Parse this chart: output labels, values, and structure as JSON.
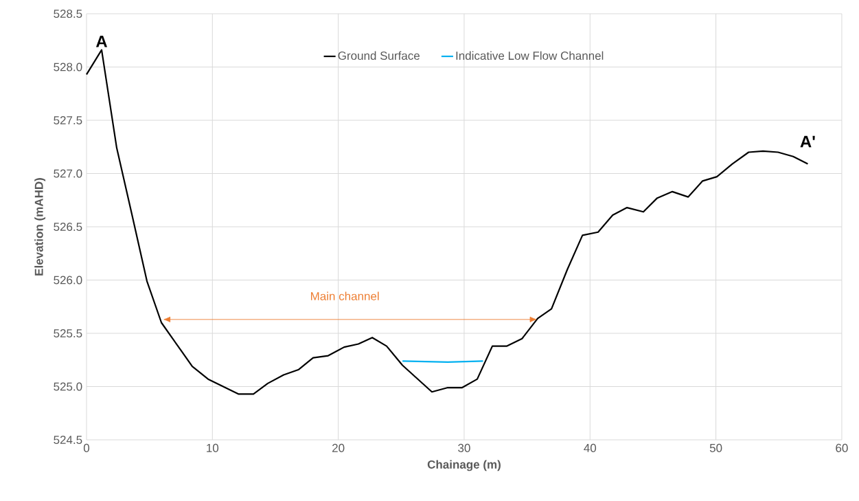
{
  "chart_data": {
    "type": "line",
    "xlabel": "Chainage (m)",
    "ylabel": "Elevation (mAHD)",
    "series": [
      {
        "name": "Ground Surface",
        "color": "#000000",
        "x": [
          0,
          1.2,
          2.4,
          3.6,
          4.8,
          5.95,
          8.4,
          9.66,
          12.06,
          13.26,
          14.4,
          15.66,
          16.86,
          18.0,
          19.2,
          20.46,
          21.6,
          22.7,
          23.84,
          25.1,
          27.44,
          28.7,
          29.84,
          31.04,
          32.24,
          33.4,
          34.6,
          35.84,
          36.94,
          38.2,
          39.4,
          40.64,
          41.8,
          42.94,
          44.24,
          45.34,
          46.54,
          47.8,
          48.94,
          50.08,
          51.3,
          52.6,
          53.74,
          54.94,
          56.14,
          57.3
        ],
        "values": [
          527.93,
          528.16,
          527.24,
          526.62,
          525.99,
          525.6,
          525.19,
          525.07,
          524.93,
          524.93,
          525.03,
          525.11,
          525.16,
          525.27,
          525.29,
          525.37,
          525.4,
          525.46,
          525.38,
          525.2,
          524.95,
          524.99,
          524.99,
          525.07,
          525.38,
          525.38,
          525.45,
          525.64,
          525.73,
          526.1,
          526.42,
          526.45,
          526.61,
          526.68,
          526.64,
          526.77,
          526.83,
          526.78,
          526.93,
          526.97,
          527.09,
          527.2,
          527.21,
          527.2,
          527.16,
          527.09
        ]
      },
      {
        "name": "Indicative Low Flow Channel",
        "color": "#00b0f0",
        "x": [
          25.1,
          28.7,
          31.5
        ],
        "values": [
          525.24,
          525.23,
          525.24
        ]
      }
    ],
    "annotations": [
      {
        "text": "A",
        "x": 1.2,
        "y": 528.16
      },
      {
        "text": "A'",
        "x": 57.3,
        "y": 527.09
      },
      "Main channel"
    ],
    "xlim": [
      0,
      60
    ],
    "xticks": [
      0,
      10,
      20,
      30,
      40,
      50,
      60
    ],
    "ylim": [
      524.5,
      528.5
    ],
    "yticks": [
      {
        "value": 524.5,
        "label": "524.5"
      },
      {
        "value": 525,
        "label": "525.0"
      },
      {
        "value": 525.5,
        "label": "525.5"
      },
      {
        "value": 526,
        "label": "526.0"
      },
      {
        "value": 526.5,
        "label": "526.5"
      },
      {
        "value": 527,
        "label": "527.0"
      },
      {
        "value": 527.5,
        "label": "527.5"
      },
      {
        "value": 528,
        "label": "528.0"
      },
      {
        "value": 528.5,
        "label": "528.5"
      }
    ],
    "grid": true,
    "legend": "top",
    "marker": "none",
    "line_style": "solid"
  }
}
